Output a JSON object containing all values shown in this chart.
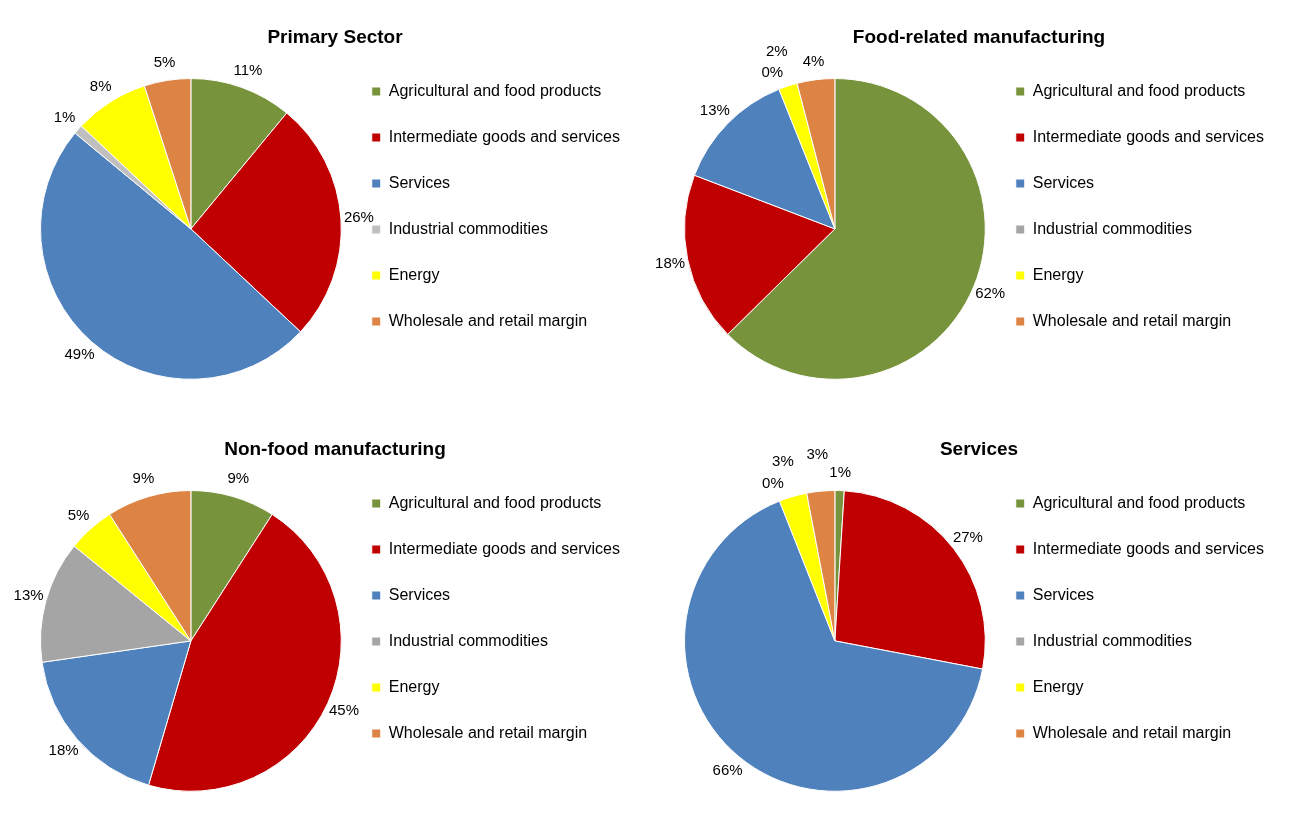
{
  "chart_data": [
    {
      "type": "pie",
      "title": "Primary Sector",
      "categories": [
        "Agricultural and food products",
        "Intermediate goods and services",
        "Services",
        "Industrial commodities",
        "Energy",
        "Wholesale and retail margin"
      ],
      "values": [
        11,
        26,
        49,
        1,
        8,
        5
      ],
      "value_labels": [
        "11%",
        "26%",
        "49%",
        "1%",
        "8%",
        "5%"
      ],
      "colors": [
        "#77933c",
        "#c00000",
        "#4f81bd",
        "#bfbfbf",
        "#ffff00",
        "#dd8344"
      ],
      "legend": "right"
    },
    {
      "type": "pie",
      "title": "Food-related manufacturing",
      "categories": [
        "Agricultural and food products",
        "Intermediate goods and services",
        "Services",
        "Industrial commodities",
        "Energy",
        "Wholesale and retail margin"
      ],
      "values": [
        62,
        18,
        13,
        0,
        2,
        4
      ],
      "value_labels": [
        "62%",
        "18%",
        "13%",
        "0%",
        "2%",
        "4%"
      ],
      "colors": [
        "#77933c",
        "#c00000",
        "#4f81bd",
        "#a5a5a5",
        "#ffff00",
        "#dd8344"
      ],
      "legend": "right"
    },
    {
      "type": "pie",
      "title": "Non-food manufacturing",
      "categories": [
        "Agricultural and food products",
        "Intermediate goods and services",
        "Services",
        "Industrial commodities",
        "Energy",
        "Wholesale and retail margin"
      ],
      "values": [
        9,
        45,
        18,
        13,
        5,
        9
      ],
      "value_labels": [
        "9%",
        "45%",
        "18%",
        "13%",
        "5%",
        "9%"
      ],
      "colors": [
        "#77933c",
        "#c00000",
        "#4f81bd",
        "#a5a5a5",
        "#ffff00",
        "#dd8344"
      ],
      "legend": "right"
    },
    {
      "type": "pie",
      "title": "Services",
      "categories": [
        "Agricultural and food products",
        "Intermediate goods and services",
        "Services",
        "Industrial commodities",
        "Energy",
        "Wholesale and retail margin"
      ],
      "values": [
        1,
        27,
        66,
        0,
        3,
        3
      ],
      "value_labels": [
        "1%",
        "27%",
        "66%",
        "0%",
        "3%",
        "3%"
      ],
      "colors": [
        "#77933c",
        "#c00000",
        "#4f81bd",
        "#a5a5a5",
        "#ffff00",
        "#dd8344"
      ],
      "legend": "right"
    }
  ]
}
